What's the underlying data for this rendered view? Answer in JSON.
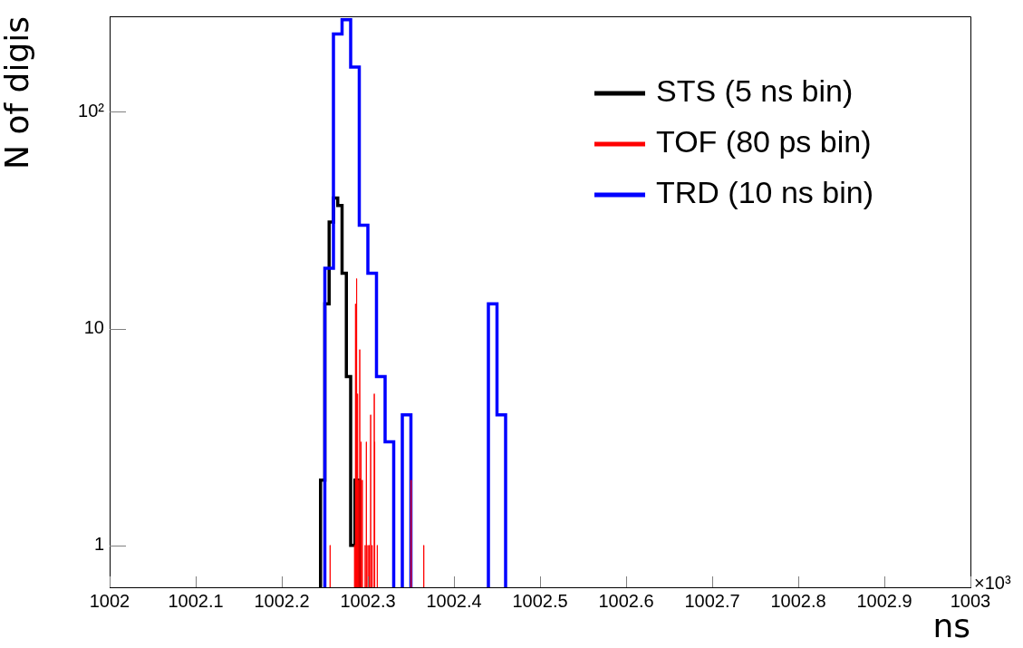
{
  "chart_data": {
    "type": "step",
    "xlabel": "ns",
    "ylabel": "N of digis",
    "log": "y",
    "legend": "top right",
    "xlim": [
      1002,
      1003
    ],
    "xticks": [
      1002,
      1002.1,
      1002.2,
      1002.3,
      1002.4,
      1002.5,
      1002.6,
      1002.7,
      1002.8,
      1002.9,
      1003
    ],
    "ylim": [
      0.64,
      276
    ],
    "yticks": [
      1,
      10,
      {
        "value": 100,
        "label": "10²"
      }
    ],
    "annotations": [
      "×10³"
    ],
    "series": [
      {
        "name": "STS (5 ns bin)",
        "color": "#000000",
        "x": [
          1002.245,
          1002.25,
          1002.255,
          1002.26,
          1002.265,
          1002.27,
          1002.275,
          1002.28,
          1002.285,
          1002.29
        ],
        "values": [
          2,
          13,
          31,
          40,
          37,
          18,
          6,
          1,
          2,
          2
        ]
      },
      {
        "name": "TOF (80 ps bin)",
        "color": "#ff0000",
        "x": [
          1002.2561,
          1002.25618,
          1002.2845,
          1002.28458,
          1002.2856,
          1002.28568,
          1002.2863,
          1002.28638,
          1002.2869,
          1002.28698,
          1002.288,
          1002.28808,
          1002.2892,
          1002.28928,
          1002.2905,
          1002.29058,
          1002.2921,
          1002.29218,
          1002.2935,
          1002.29358,
          1002.2968,
          1002.29688,
          1002.2982,
          1002.29828,
          1002.3,
          1002.30008,
          1002.3017,
          1002.30178,
          1002.3032,
          1002.30328,
          1002.3049,
          1002.30498,
          1002.3074,
          1002.30748,
          1002.3079,
          1002.30798,
          1002.3109,
          1002.31098,
          1002.3502,
          1002.35028,
          1002.3649,
          1002.36498
        ],
        "values": [
          1,
          null,
          1,
          null,
          13,
          null,
          9,
          null,
          17,
          null,
          5,
          null,
          2,
          null,
          8,
          null,
          3,
          null,
          2,
          null,
          1,
          null,
          3,
          null,
          1,
          null,
          1,
          null,
          4,
          null,
          1,
          null,
          5,
          null,
          3,
          null,
          1,
          null,
          2,
          null,
          1,
          1
        ]
      },
      {
        "name": "TRD (10 ns bin)",
        "color": "#0000ff",
        "x": [
          1002.25,
          1002.26,
          1002.27,
          1002.28,
          1002.29,
          1002.3,
          1002.31,
          1002.32,
          1002.33,
          1002.34,
          1002.35,
          1002.36,
          1002.37,
          1002.38,
          1002.39,
          1002.4,
          1002.41,
          1002.42,
          1002.43,
          1002.44,
          1002.45,
          1002.46
        ],
        "values": [
          19,
          229,
          266,
          161,
          30,
          18,
          6,
          3,
          null,
          4,
          null,
          null,
          null,
          null,
          null,
          null,
          null,
          null,
          null,
          13,
          4,
          4
        ]
      }
    ]
  }
}
